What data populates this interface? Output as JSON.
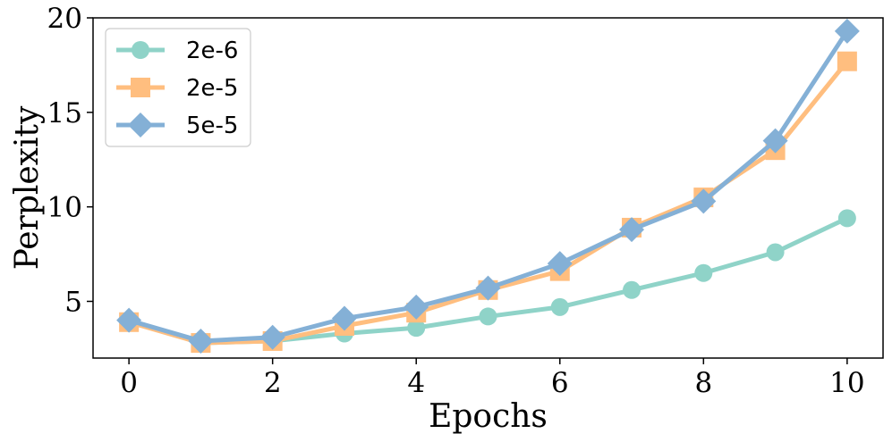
{
  "chart_data": {
    "type": "line",
    "xlabel": "Epochs",
    "ylabel": "Perplexity",
    "xlim": [
      -0.5,
      10.5
    ],
    "ylim": [
      2.0,
      20.0
    ],
    "xticks": [
      0,
      2,
      4,
      6,
      8,
      10
    ],
    "yticks": [
      5,
      10,
      15,
      20
    ],
    "grid": false,
    "legend_position": "top-left",
    "x": [
      0,
      1,
      2,
      3,
      4,
      5,
      6,
      7,
      8,
      9,
      10
    ],
    "series": [
      {
        "name": "2e-6",
        "marker": "circle",
        "color": "#8fd3c8",
        "values": [
          4.0,
          2.8,
          2.9,
          3.3,
          3.6,
          4.2,
          4.7,
          5.6,
          6.5,
          7.6,
          9.4
        ]
      },
      {
        "name": "2e-5",
        "marker": "square",
        "color": "#ffbe7f",
        "values": [
          3.9,
          2.8,
          2.9,
          3.7,
          4.4,
          5.6,
          6.6,
          8.9,
          10.5,
          13.0,
          17.7
        ]
      },
      {
        "name": "5e-5",
        "marker": "diamond",
        "color": "#84b0d6",
        "values": [
          4.0,
          2.9,
          3.1,
          4.1,
          4.7,
          5.7,
          7.0,
          8.8,
          10.3,
          13.5,
          19.3
        ]
      }
    ]
  }
}
